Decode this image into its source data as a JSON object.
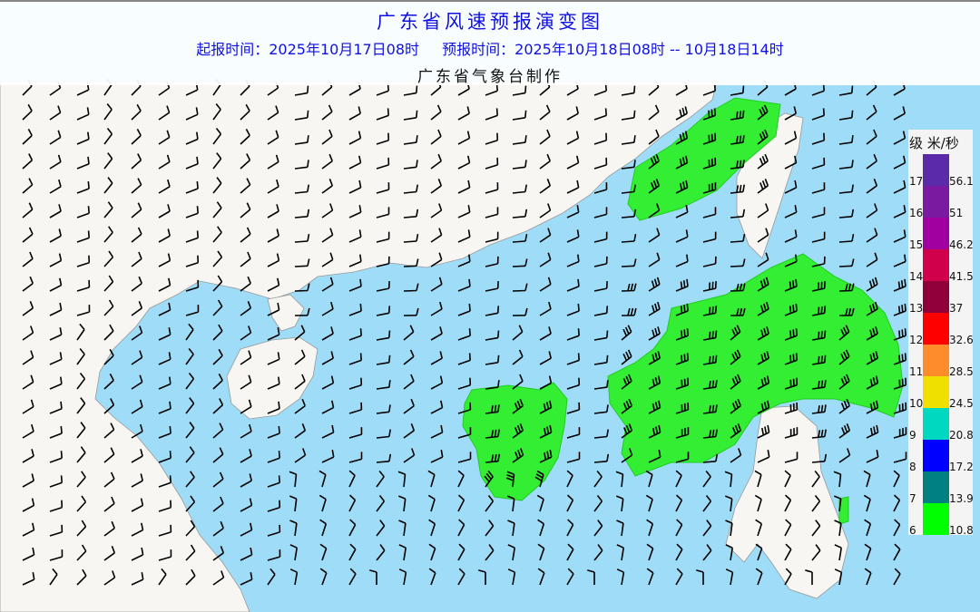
{
  "header": {
    "title": "广东省风速预报演变图",
    "issue_time": "起报时间：2025年10月17日08时",
    "forecast_time": "预报时间：2025年10月18日08时 -- 10月18日14时",
    "maker": "广东省气象台制作"
  },
  "colors": {
    "sea": "#9fdcf7",
    "land": "#f7f6f2",
    "wind_area": "#33ee33",
    "barb": "#000000"
  },
  "legend": {
    "header": "级 米/秒",
    "items": [
      {
        "level": "17",
        "speed": "56.1",
        "color": "#5b2aa8"
      },
      {
        "level": "16",
        "speed": "51",
        "color": "#7a1aa0"
      },
      {
        "level": "15",
        "speed": "46.2",
        "color": "#a0009f"
      },
      {
        "level": "14",
        "speed": "41.5",
        "color": "#d0004a"
      },
      {
        "level": "13",
        "speed": "37",
        "color": "#900038"
      },
      {
        "level": "12",
        "speed": "32.6",
        "color": "#ff0000"
      },
      {
        "level": "11",
        "speed": "28.5",
        "color": "#ff8c2a"
      },
      {
        "level": "10",
        "speed": "24.5",
        "color": "#f0e000"
      },
      {
        "level": "9",
        "speed": "20.8",
        "color": "#00d8c0"
      },
      {
        "level": "8",
        "speed": "17.2",
        "color": "#0000ff"
      },
      {
        "level": "7",
        "speed": "13.9",
        "color": "#008080"
      },
      {
        "level": "6",
        "speed": "10.8",
        "color": "#00ff00"
      }
    ]
  }
}
